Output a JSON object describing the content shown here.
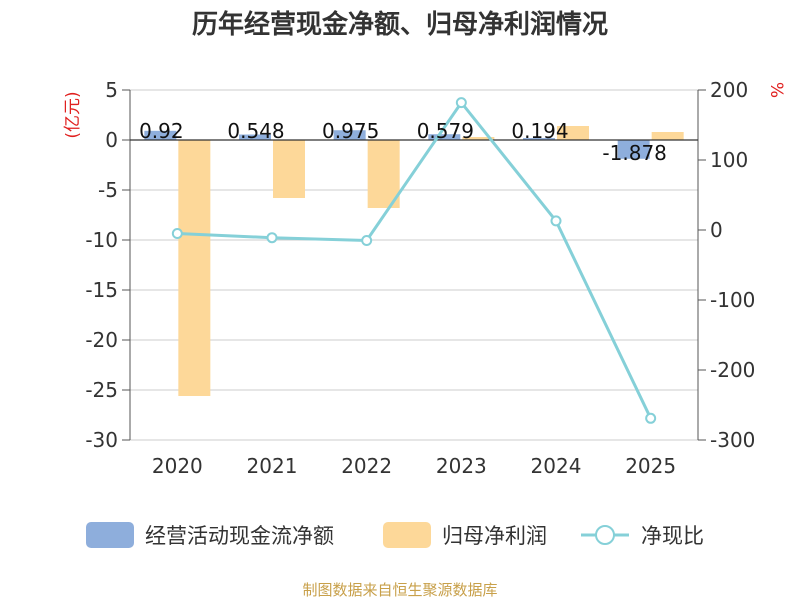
{
  "chart_data": {
    "type": "bar+line",
    "title": "历年经营现金净额、归母净利润情况",
    "categories": [
      "2020",
      "2021",
      "2022",
      "2023",
      "2024",
      "2025"
    ],
    "left_axis": {
      "unit": "(亿元)",
      "ylim": [
        -30,
        5
      ],
      "ticks": [
        5,
        0,
        -5,
        -10,
        -15,
        -20,
        -25,
        -30
      ]
    },
    "right_axis": {
      "unit": "%",
      "ylim": [
        -300,
        200
      ],
      "ticks": [
        200,
        100,
        0,
        -100,
        -200,
        -300
      ]
    },
    "series": [
      {
        "name": "经营活动现金流净额",
        "type": "bar",
        "axis": "left",
        "color": "#8eaedc",
        "values": [
          0.92,
          0.548,
          0.975,
          0.579,
          0.194,
          -1.878
        ],
        "labels": [
          "0.92",
          "0.548",
          "0.975",
          "0.579",
          "0.194",
          "-1.878"
        ]
      },
      {
        "name": "归母净利润",
        "type": "bar",
        "axis": "left",
        "color": "#fdd899",
        "values": [
          -25.6,
          -5.8,
          -6.8,
          0.3,
          1.4,
          0.8
        ]
      },
      {
        "name": "净现比",
        "type": "line",
        "axis": "right",
        "color": "#85d0d8",
        "values": [
          -5,
          -11,
          -15,
          182,
          13,
          -269
        ]
      }
    ],
    "source": "制图数据来自恒生聚源数据库"
  }
}
